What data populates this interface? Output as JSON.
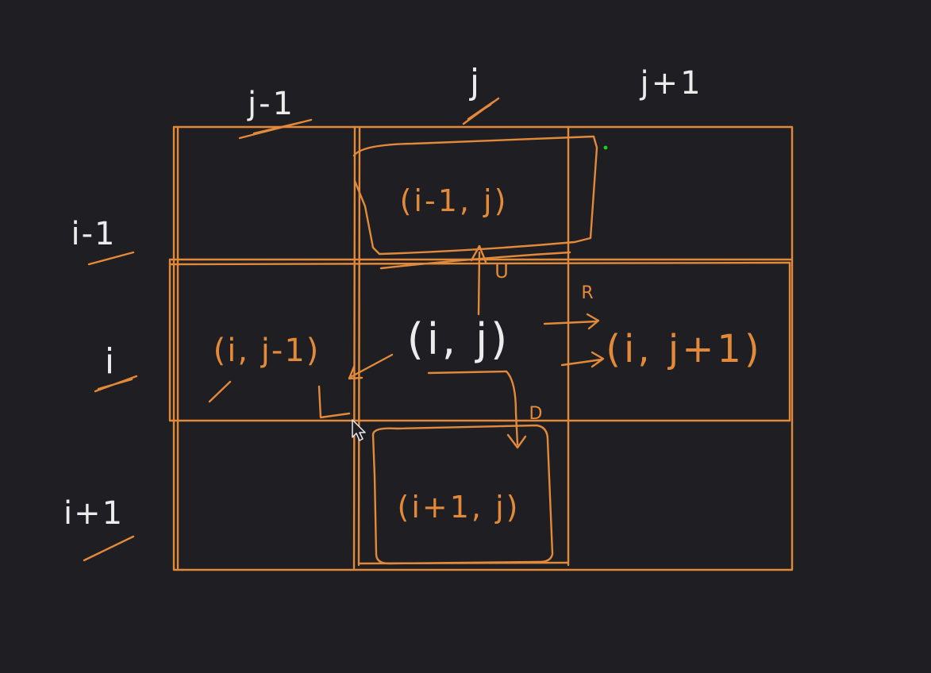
{
  "colors": {
    "background": "#1f1e22",
    "ink_white": "#ececec",
    "ink_orange": "#e38a3a",
    "cursor_dot": "#19d219"
  },
  "column_labels": {
    "left": "j-1",
    "center": "j",
    "right": "j+1"
  },
  "row_labels": {
    "top": "i-1",
    "middle": "i",
    "bottom": "i+1"
  },
  "cells": {
    "up": "(i-1, j)",
    "left": "(i, j-1)",
    "center": "(i, j)",
    "right": "(i, j+1)",
    "down": "(i+1, j)"
  },
  "direction_marks": {
    "up": "U",
    "right": "R",
    "down": "D",
    "left": "L"
  },
  "cursor": {
    "icon": "mouse-pointer-icon"
  }
}
